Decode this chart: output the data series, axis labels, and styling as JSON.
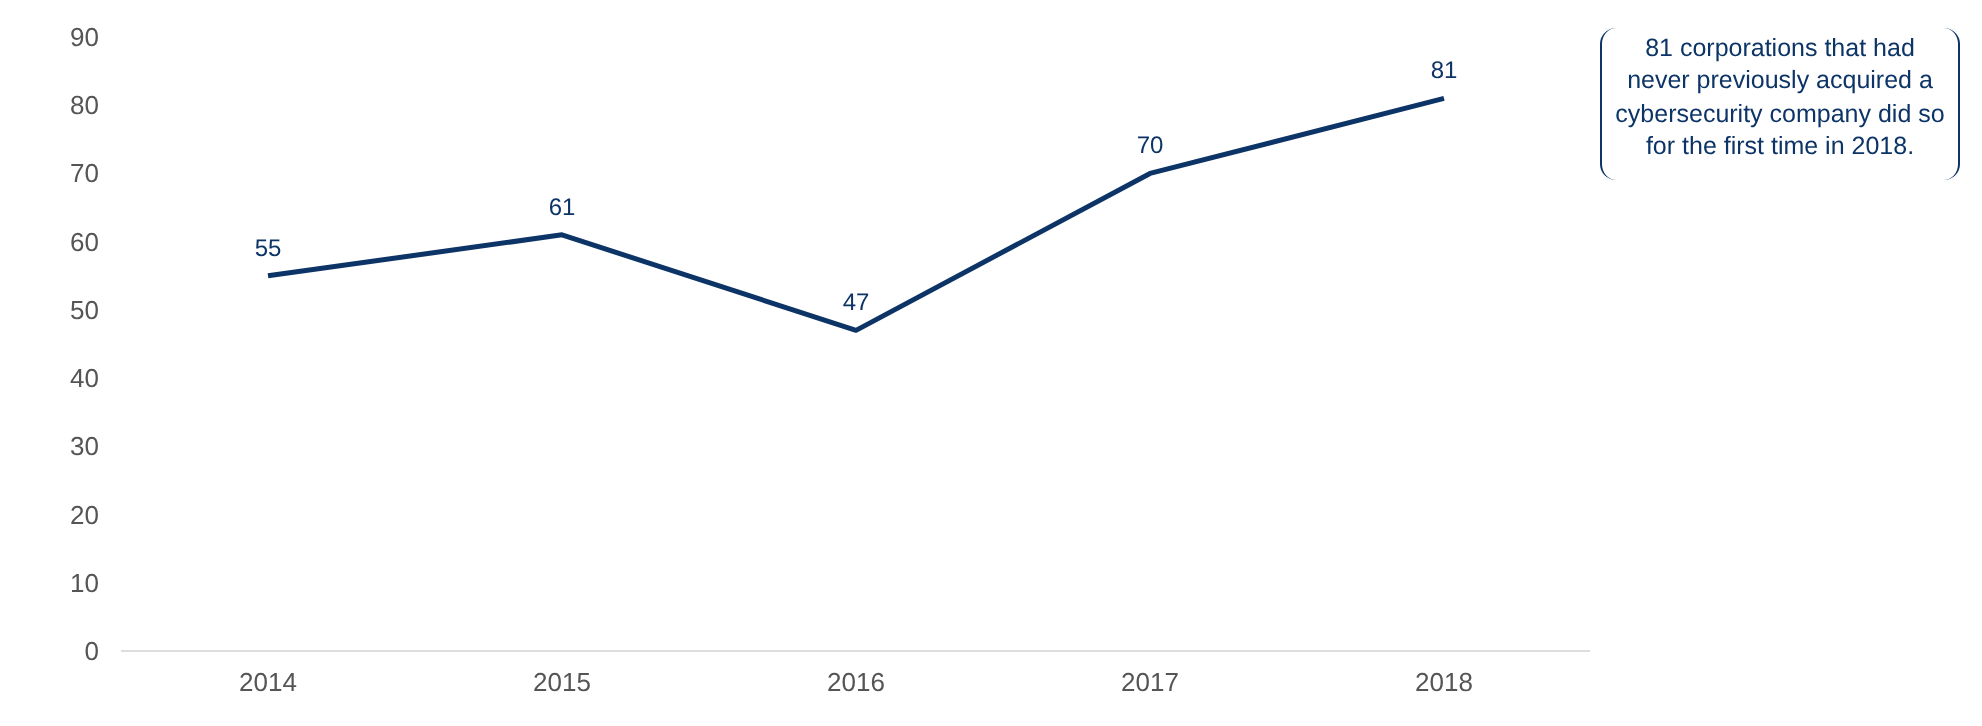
{
  "chart_data": {
    "type": "line",
    "categories": [
      "2014",
      "2015",
      "2016",
      "2017",
      "2018"
    ],
    "series": [
      {
        "color": "#0d3466",
        "values": [
          55,
          61,
          47,
          70,
          81
        ]
      }
    ],
    "ylim": [
      0,
      90
    ],
    "yticks": [
      0,
      10,
      20,
      30,
      40,
      50,
      60,
      70,
      80,
      90
    ],
    "grid": false,
    "marker": "none",
    "line_style": "solid",
    "data_labels": true,
    "annotations": [
      "81 corporations that had never previously acquired a cybersecurity company did so for the first time in 2018."
    ]
  }
}
